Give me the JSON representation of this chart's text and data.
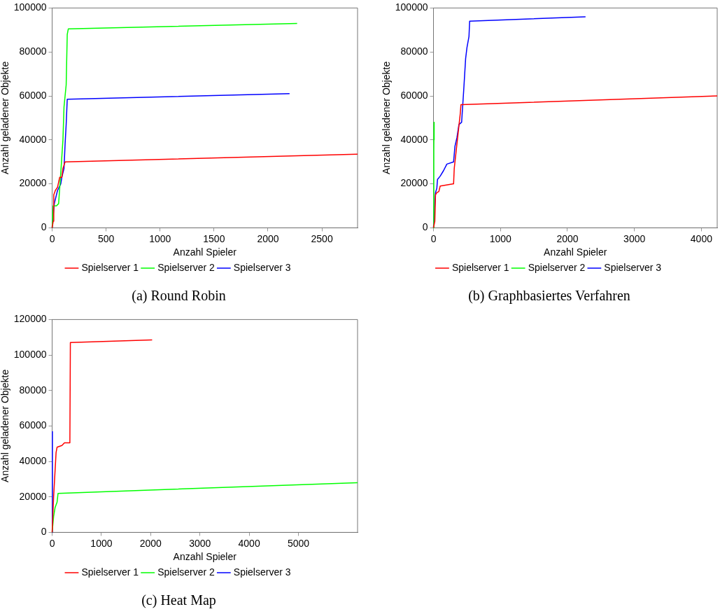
{
  "chart_data": [
    {
      "type": "line",
      "title": "(a) Round Robin",
      "xlabel": "Anzahl Spieler",
      "ylabel": "Anzahl geladener Objekte",
      "xlim": [
        0,
        2830
      ],
      "xticks": [
        0,
        500,
        1000,
        1500,
        2000,
        2500
      ],
      "ylim": [
        0,
        100000
      ],
      "yticks": [
        0,
        20000,
        40000,
        60000,
        80000,
        100000
      ],
      "grid": false,
      "legend": "bottom",
      "marker": "none",
      "series": [
        {
          "name": "Spielserver 1",
          "color": "#ff0000",
          "x": [
            0,
            10,
            15,
            30,
            50,
            70,
            90,
            100,
            120,
            2830
          ],
          "values": [
            0,
            3000,
            15000,
            17000,
            18500,
            23000,
            23000,
            27000,
            30000,
            33500
          ]
        },
        {
          "name": "Spielserver 2",
          "color": "#00ff00",
          "x": [
            0,
            10,
            40,
            60,
            80,
            100,
            110,
            130,
            140,
            150,
            2270
          ],
          "values": [
            0,
            10000,
            10000,
            11000,
            25000,
            40000,
            55000,
            65000,
            88000,
            90500,
            93000
          ]
        },
        {
          "name": "Spielserver 3",
          "color": "#0000ff",
          "x": [
            0,
            20,
            50,
            80,
            90,
            110,
            120,
            130,
            140,
            2200
          ],
          "values": [
            0,
            11000,
            17000,
            20000,
            23000,
            27000,
            38000,
            47000,
            58500,
            61000
          ]
        }
      ]
    },
    {
      "type": "line",
      "title": "(b) Graphbasiertes Verfahren",
      "xlabel": "Anzahl Spieler",
      "ylabel": "Anzahl geladener Objekte",
      "xlim": [
        0,
        4236
      ],
      "xticks": [
        0,
        1000,
        2000,
        3000,
        4000
      ],
      "ylim": [
        0,
        100000
      ],
      "yticks": [
        0,
        20000,
        40000,
        60000,
        80000,
        100000
      ],
      "grid": false,
      "legend": "bottom",
      "marker": "none",
      "series": [
        {
          "name": "Spielserver 1",
          "color": "#ff0000",
          "x": [
            0,
            20,
            30,
            50,
            80,
            100,
            300,
            310,
            400,
            410,
            4236
          ],
          "values": [
            0,
            3000,
            15000,
            16000,
            16500,
            19000,
            20000,
            27000,
            52000,
            56000,
            60000
          ]
        },
        {
          "name": "Spielserver 2",
          "color": "#00ff00",
          "x": [
            0,
            5,
            8,
            10
          ],
          "values": [
            0,
            35000,
            48000,
            40000
          ]
        },
        {
          "name": "Spielserver 3",
          "color": "#0000ff",
          "x": [
            0,
            30,
            50,
            60,
            100,
            150,
            200,
            300,
            320,
            350,
            380,
            420,
            450,
            480,
            500,
            530,
            540,
            2270
          ],
          "values": [
            0,
            16000,
            18000,
            22000,
            23500,
            26000,
            29000,
            30000,
            37000,
            41000,
            47000,
            48000,
            62000,
            77000,
            82000,
            87000,
            94000,
            96000
          ]
        }
      ]
    },
    {
      "type": "line",
      "title": "(c) Heat Map",
      "xlabel": "Anzahl Spieler",
      "ylabel": "Anzahl geladener Objekte",
      "xlim": [
        0,
        6200
      ],
      "xticks": [
        0,
        1000,
        2000,
        3000,
        4000,
        5000
      ],
      "ylim": [
        0,
        120000
      ],
      "yticks": [
        0,
        20000,
        40000,
        60000,
        80000,
        100000,
        120000
      ],
      "grid": false,
      "legend": "bottom",
      "marker": "none",
      "series": [
        {
          "name": "Spielserver 1",
          "color": "#ff0000",
          "x": [
            0,
            30,
            50,
            80,
            100,
            200,
            250,
            360,
            370,
            2030
          ],
          "values": [
            0,
            20000,
            30000,
            45000,
            48000,
            49000,
            50500,
            50500,
            107000,
            108500
          ]
        },
        {
          "name": "Spielserver 2",
          "color": "#00ff00",
          "x": [
            0,
            30,
            60,
            100,
            120,
            6200
          ],
          "values": [
            0,
            9000,
            14000,
            17000,
            22000,
            28000
          ]
        },
        {
          "name": "Spielserver 3",
          "color": "#0000ff",
          "x": [
            0,
            5
          ],
          "values": [
            0,
            57000
          ]
        }
      ]
    }
  ]
}
